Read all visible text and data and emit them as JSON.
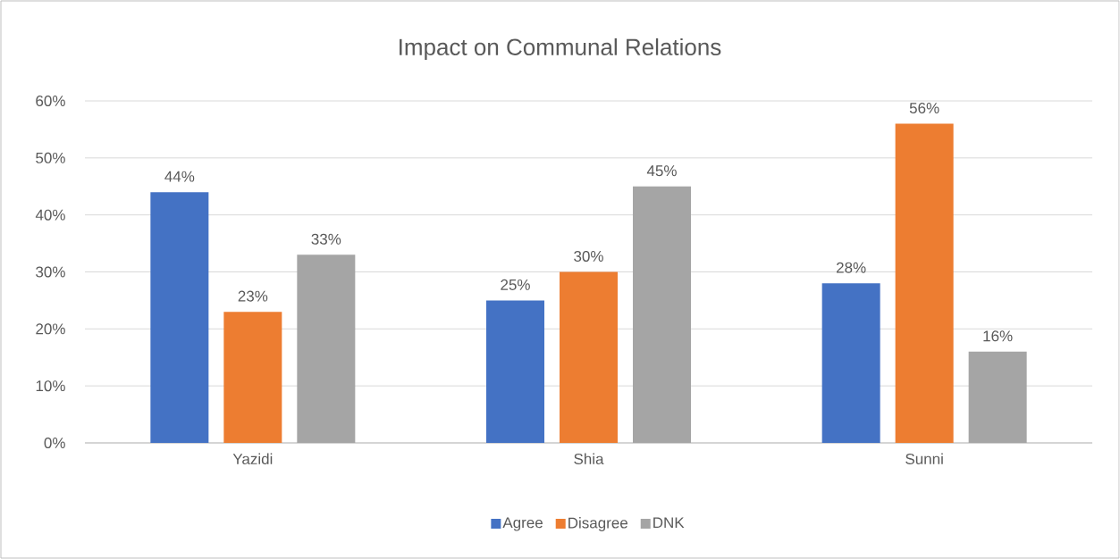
{
  "chart_data": {
    "type": "bar",
    "title": "Impact on Communal Relations",
    "categories": [
      "Yazidi",
      "Shia",
      "Sunni"
    ],
    "series": [
      {
        "name": "Agree",
        "color": "#4472c4",
        "values": [
          44,
          25,
          28
        ],
        "value_labels": [
          "44%",
          "25%",
          "28%"
        ]
      },
      {
        "name": "Disagree",
        "color": "#ed7d31",
        "values": [
          23,
          30,
          56
        ],
        "value_labels": [
          "23%",
          "30%",
          "56%"
        ]
      },
      {
        "name": "DNK",
        "color": "#a5a5a5",
        "values": [
          33,
          45,
          16
        ],
        "value_labels": [
          "33%",
          "45%",
          "16%"
        ]
      }
    ],
    "ylim": [
      0,
      60
    ],
    "yticks": [
      {
        "value": 0,
        "label": "0%"
      },
      {
        "value": 10,
        "label": "10%"
      },
      {
        "value": 20,
        "label": "20%"
      },
      {
        "value": 30,
        "label": "30%"
      },
      {
        "value": 40,
        "label": "40%"
      },
      {
        "value": 50,
        "label": "50%"
      },
      {
        "value": 60,
        "label": "60%"
      }
    ],
    "grid": "y",
    "legend": "bottom"
  }
}
